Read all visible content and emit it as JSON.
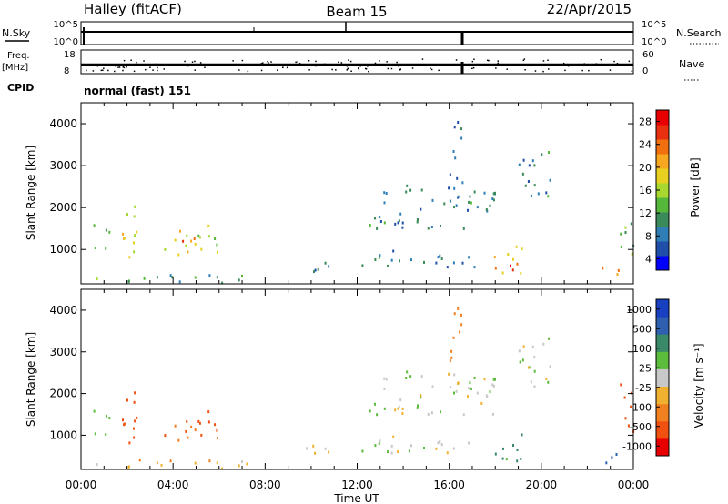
{
  "header": {
    "station": "Halley (fitACF)",
    "beam": "Beam 15",
    "date": "22/Apr/2015"
  },
  "status_panel": {
    "nsky_label": "N.Sky",
    "nsearch_label": "N.Search",
    "nsky_ticks": [
      "10^5",
      "10^0"
    ],
    "nsearch_ticks": [
      "10^5",
      "10^0"
    ],
    "freq_label": "Freq.",
    "freq_unit": "[MHz]",
    "freq_ticks": [
      "18",
      "8"
    ],
    "nave_label": "Nave",
    "nave_ticks": [
      "60",
      "0"
    ],
    "cpid_label": "CPID",
    "cpid_value": "normal (fast) 151"
  },
  "x_axis": {
    "label": "Time UT",
    "ticks": [
      "00:00",
      "04:00",
      "08:00",
      "12:00",
      "16:00",
      "20:00",
      "00:00"
    ]
  },
  "power_colorbar": {
    "label": "Power [dB]",
    "ticks": [
      "28",
      "24",
      "20",
      "16",
      "12",
      "8",
      "4"
    ],
    "colors": [
      "#0000ff",
      "#1f4fa8",
      "#2f7fb6",
      "#3a8a5a",
      "#55b83a",
      "#a8d830",
      "#e8d020",
      "#f8a820",
      "#f07010",
      "#e83010",
      "#e80000"
    ]
  },
  "velocity_colorbar": {
    "label": "Velocity [m s⁻¹]",
    "ticks": [
      "1000",
      "500",
      "100",
      "25",
      "-25",
      "-100",
      "-500",
      "-1000"
    ],
    "colors": [
      "#e80000",
      "#f05010",
      "#f08020",
      "#f0b030",
      "#c8c8c8",
      "#5cbc3c",
      "#3a8a6a",
      "#2f60b0",
      "#1840c0"
    ]
  },
  "chart_data": [
    {
      "type": "heatmap",
      "title": "Power",
      "xlabel": "Time UT",
      "ylabel": "Slant Range [km]",
      "xlim": [
        0,
        24
      ],
      "ylim": [
        180,
        4500
      ],
      "y_ticks": [
        1000,
        2000,
        3000,
        4000
      ],
      "colorbar": "power",
      "clim": [
        0,
        32
      ],
      "regions": [
        {
          "t0": 0.0,
          "t1": 1.0,
          "r0": 300,
          "r1": 400,
          "v": 14
        },
        {
          "t0": 0.4,
          "t1": 1.2,
          "r0": 900,
          "r1": 1700,
          "v": 12
        },
        {
          "t0": 1.6,
          "t1": 2.4,
          "r0": 700,
          "r1": 2300,
          "v": 18
        },
        {
          "t0": 3.6,
          "t1": 6.0,
          "r0": 800,
          "r1": 1600,
          "v": 18
        },
        {
          "t0": 4.2,
          "t1": 5.0,
          "r0": 1000,
          "r1": 1500,
          "v": 24
        },
        {
          "t0": 2.0,
          "t1": 8.0,
          "r0": 200,
          "r1": 450,
          "v": 10
        },
        {
          "t0": 9.6,
          "t1": 11.0,
          "r0": 500,
          "r1": 900,
          "v": 8
        },
        {
          "t0": 11.5,
          "t1": 17.2,
          "r0": 600,
          "r1": 1000,
          "v": 8
        },
        {
          "t0": 12.5,
          "t1": 18.0,
          "r0": 1500,
          "r1": 2600,
          "v": 8
        },
        {
          "t0": 16.0,
          "t1": 16.7,
          "r0": 2600,
          "r1": 4200,
          "v": 8
        },
        {
          "t0": 17.9,
          "t1": 19.2,
          "r0": 400,
          "r1": 1200,
          "v": 20
        },
        {
          "t0": 18.4,
          "t1": 19.1,
          "r0": 500,
          "r1": 800,
          "v": 28
        },
        {
          "t0": 19.0,
          "t1": 20.4,
          "r0": 2000,
          "r1": 3400,
          "v": 8
        },
        {
          "t0": 22.6,
          "t1": 23.5,
          "r0": 220,
          "r1": 600,
          "v": 26
        },
        {
          "t0": 23.4,
          "t1": 24.0,
          "r0": 900,
          "r1": 2300,
          "v": 14
        }
      ]
    },
    {
      "type": "heatmap",
      "title": "Velocity",
      "xlabel": "Time UT",
      "ylabel": "Slant Range [km]",
      "xlim": [
        0,
        24
      ],
      "ylim": [
        180,
        4500
      ],
      "y_ticks": [
        1000,
        2000,
        3000,
        4000
      ],
      "colorbar": "velocity",
      "clim": [
        -1200,
        1200
      ],
      "regions": [
        {
          "t0": 0.0,
          "t1": 1.0,
          "r0": 300,
          "r1": 400,
          "v": 0
        },
        {
          "t0": 0.4,
          "t1": 1.2,
          "r0": 900,
          "r1": 1700,
          "v": 60
        },
        {
          "t0": 1.6,
          "t1": 2.4,
          "r0": 700,
          "r1": 2300,
          "v": -600
        },
        {
          "t0": 3.6,
          "t1": 6.0,
          "r0": 800,
          "r1": 1600,
          "v": -500
        },
        {
          "t0": 2.0,
          "t1": 8.0,
          "r0": 200,
          "r1": 450,
          "v": -80
        },
        {
          "t0": 9.6,
          "t1": 11.0,
          "r0": 500,
          "r1": 900,
          "v": -60
        },
        {
          "t0": 11.5,
          "t1": 17.2,
          "r0": 600,
          "r1": 1000,
          "v": 0
        },
        {
          "t0": 12.5,
          "t1": 18.0,
          "r0": 1500,
          "r1": 2600,
          "v": 0
        },
        {
          "t0": 16.0,
          "t1": 16.7,
          "r0": 2600,
          "r1": 4200,
          "v": -300
        },
        {
          "t0": 17.9,
          "t1": 19.2,
          "r0": 400,
          "r1": 1200,
          "v": 150
        },
        {
          "t0": 19.0,
          "t1": 20.4,
          "r0": 2000,
          "r1": 3400,
          "v": 0
        },
        {
          "t0": 22.6,
          "t1": 23.5,
          "r0": 220,
          "r1": 600,
          "v": 600
        },
        {
          "t0": 23.4,
          "t1": 24.0,
          "r0": 900,
          "r1": 2300,
          "v": -700
        }
      ]
    }
  ]
}
